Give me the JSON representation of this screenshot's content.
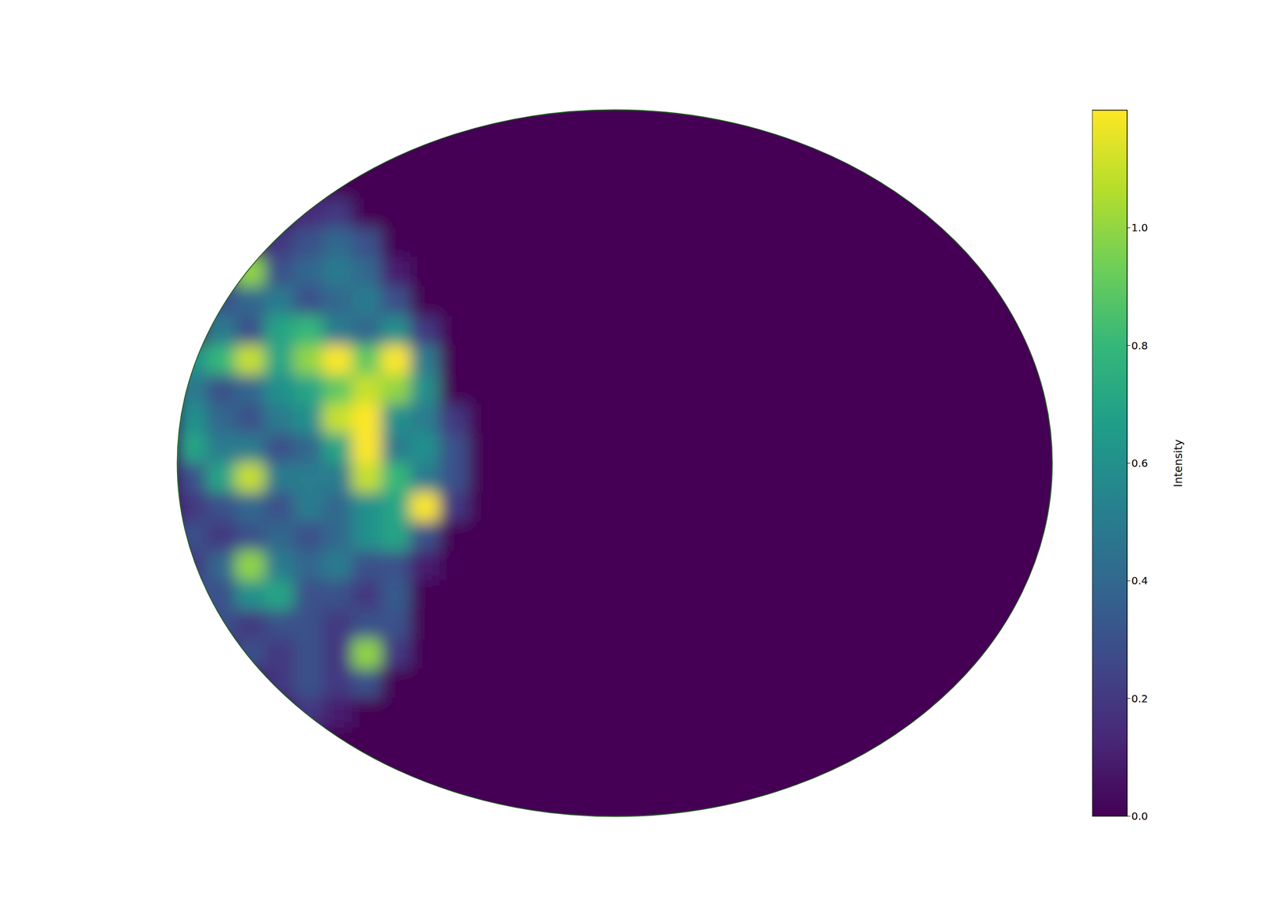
{
  "chart_data": {
    "type": "heatmap",
    "tick_labels": false,
    "xlim": [
      0,
      30
    ],
    "ylim": [
      0,
      24
    ],
    "cells": [
      [
        0,
        0,
        0,
        0,
        0,
        0,
        0,
        0,
        0,
        0,
        0,
        0,
        0,
        0,
        0,
        0,
        0,
        0,
        0,
        0,
        0,
        0,
        0,
        0,
        0,
        0,
        0,
        0,
        0,
        0
      ],
      [
        0,
        0,
        0,
        0,
        0,
        0,
        0,
        0,
        0,
        0,
        0,
        0,
        0,
        0,
        0,
        0,
        0,
        0,
        0,
        0,
        0,
        0,
        0,
        0,
        0,
        0,
        0,
        0,
        0,
        0
      ],
      [
        0,
        0,
        0,
        0,
        0,
        0,
        0,
        0,
        0,
        0,
        0,
        0,
        0,
        0,
        0,
        0,
        0,
        0,
        0,
        0,
        0,
        0,
        0,
        0,
        0,
        0,
        0,
        0,
        0,
        0
      ],
      [
        0,
        0,
        0,
        0,
        0.15,
        0.2,
        0,
        0,
        0,
        0,
        0,
        0,
        0,
        0,
        0,
        0,
        0,
        0,
        0,
        0,
        0,
        0,
        0,
        0,
        0,
        0,
        0,
        0,
        0,
        0
      ],
      [
        0,
        0,
        0,
        0.2,
        0.3,
        0.4,
        0.3,
        0,
        0,
        0,
        0,
        0,
        0,
        0,
        0,
        0,
        0,
        0,
        0,
        0,
        0,
        0,
        0,
        0,
        0,
        0,
        0,
        0,
        0,
        0
      ],
      [
        0,
        0,
        1.0,
        0.3,
        0.4,
        0.5,
        0.4,
        0.1,
        0,
        0,
        0,
        0,
        0,
        0,
        0,
        0,
        0,
        0,
        0,
        0,
        0,
        0,
        0,
        0,
        0,
        0,
        0,
        0,
        0,
        0
      ],
      [
        0,
        0.3,
        0.4,
        0.5,
        0.3,
        0.4,
        0.5,
        0.3,
        0,
        0,
        0,
        0,
        0,
        0,
        0,
        0,
        0,
        0,
        0,
        0,
        0,
        0,
        0,
        0,
        0,
        0,
        0,
        0,
        0,
        0
      ],
      [
        0,
        0.5,
        0.3,
        0.7,
        0.8,
        0.5,
        0.4,
        0.6,
        0.2,
        0,
        0,
        0,
        0,
        0,
        0,
        0,
        0,
        0,
        0,
        0,
        0,
        0,
        0,
        0,
        0,
        0,
        0,
        0,
        0,
        0
      ],
      [
        0.6,
        0.8,
        1.1,
        0.7,
        1.0,
        1.2,
        0.9,
        1.2,
        0.5,
        0,
        0,
        0,
        0,
        0,
        0,
        0,
        0,
        0,
        0,
        0,
        0,
        0,
        0,
        0,
        0,
        0,
        0,
        0,
        0,
        0
      ],
      [
        0.5,
        0.3,
        0.4,
        0.6,
        0.7,
        0.9,
        1.1,
        1.0,
        0.6,
        0,
        0,
        0,
        0,
        0,
        0,
        0,
        0,
        0,
        0,
        0,
        0,
        0,
        0,
        0,
        0,
        0,
        0,
        0,
        0,
        0
      ],
      [
        0.6,
        0.4,
        0.3,
        0.5,
        0.6,
        1.1,
        1.2,
        0.6,
        0.5,
        0.2,
        0,
        0,
        0,
        0,
        0,
        0,
        0,
        0,
        0,
        0,
        0,
        0,
        0,
        0,
        0,
        0,
        0,
        0,
        0,
        0
      ],
      [
        0.7,
        0.5,
        0.5,
        0.3,
        0.4,
        0.7,
        1.2,
        0.5,
        0.6,
        0.3,
        0,
        0,
        0,
        0,
        0,
        0,
        0,
        0,
        0,
        0,
        0,
        0,
        0,
        0,
        0,
        0,
        0,
        0,
        0,
        0
      ],
      [
        0.3,
        0.7,
        1.1,
        0.5,
        0.5,
        0.5,
        1.1,
        0.8,
        0.5,
        0.3,
        0,
        0,
        0,
        0,
        0,
        0,
        0,
        0,
        0,
        0,
        0,
        0,
        0,
        0,
        0,
        0,
        0,
        0,
        0,
        0
      ],
      [
        0.2,
        0.3,
        0.4,
        0.3,
        0.5,
        0.4,
        0.6,
        0.7,
        1.2,
        0.2,
        0,
        0,
        0,
        0,
        0,
        0,
        0,
        0,
        0,
        0,
        0,
        0,
        0,
        0,
        0,
        0,
        0,
        0,
        0,
        0
      ],
      [
        0.3,
        0.2,
        0.3,
        0.4,
        0.3,
        0.4,
        0.6,
        0.7,
        0.3,
        0,
        0,
        0,
        0,
        0,
        0,
        0,
        0,
        0,
        0,
        0,
        0,
        0,
        0,
        0,
        0,
        0,
        0,
        0,
        0,
        0
      ],
      [
        0.2,
        0.4,
        1.0,
        0.5,
        0.4,
        0.5,
        0.3,
        0.3,
        0.1,
        0,
        0,
        0,
        0,
        0,
        0,
        0,
        0,
        0,
        0,
        0,
        0,
        0,
        0,
        0,
        0,
        0,
        0,
        0,
        0,
        0
      ],
      [
        0.3,
        0.3,
        0.6,
        0.7,
        0.3,
        0.3,
        0.2,
        0.35,
        0,
        0,
        0,
        0,
        0,
        0,
        0,
        0,
        0,
        0,
        0,
        0,
        0,
        0,
        0,
        0,
        0,
        0,
        0,
        0,
        0,
        0
      ],
      [
        0,
        0.3,
        0.2,
        0.3,
        0.3,
        0.2,
        0.3,
        0.3,
        0,
        0,
        0,
        0,
        0,
        0,
        0,
        0,
        0,
        0,
        0,
        0,
        0,
        0,
        0,
        0,
        0,
        0,
        0,
        0,
        0,
        0
      ],
      [
        0,
        0,
        0.3,
        0.2,
        0.3,
        0.2,
        1.0,
        0.2,
        0,
        0,
        0,
        0,
        0,
        0,
        0,
        0,
        0,
        0,
        0,
        0,
        0,
        0,
        0,
        0,
        0,
        0,
        0,
        0,
        0,
        0
      ],
      [
        0,
        0,
        0,
        0.2,
        0.3,
        0.2,
        0.3,
        0,
        0,
        0,
        0,
        0,
        0,
        0,
        0,
        0,
        0,
        0,
        0,
        0,
        0,
        0,
        0,
        0,
        0,
        0,
        0,
        0,
        0,
        0
      ],
      [
        0,
        0,
        0,
        0,
        0.2,
        0.1,
        0,
        0,
        0,
        0,
        0,
        0,
        0,
        0,
        0,
        0,
        0,
        0,
        0,
        0,
        0,
        0,
        0,
        0,
        0,
        0,
        0,
        0,
        0,
        0
      ],
      [
        0,
        0,
        0,
        0,
        0,
        0,
        0,
        0,
        0,
        0,
        0,
        0,
        0,
        0,
        0,
        0,
        0,
        0,
        0,
        0,
        0,
        0,
        0,
        0,
        0,
        0,
        0,
        0,
        0,
        0
      ],
      [
        0,
        0,
        0,
        0,
        0,
        0,
        0,
        0,
        0,
        0,
        0,
        0,
        0,
        0,
        0,
        0,
        0,
        0,
        0,
        0,
        0,
        0,
        0,
        0,
        0,
        0,
        0,
        0,
        0,
        0
      ],
      [
        0,
        0,
        0,
        0,
        0,
        0,
        0,
        0,
        0,
        0,
        0,
        0,
        0,
        0,
        0,
        0,
        0,
        0,
        0,
        0,
        0,
        0,
        0,
        0,
        0,
        0,
        0,
        0,
        0,
        0
      ]
    ],
    "colorbar": {
      "label": "Intensity",
      "range": [
        0,
        1.2
      ],
      "ticks": [
        {
          "value": 0,
          "label": "0.0"
        },
        {
          "value": 0.2,
          "label": "0.2"
        },
        {
          "value": 0.4,
          "label": "0.4"
        },
        {
          "value": 0.6,
          "label": "0.6"
        },
        {
          "value": 0.8,
          "label": "0.8"
        },
        {
          "value": 1.0,
          "label": "1.0"
        }
      ]
    }
  }
}
